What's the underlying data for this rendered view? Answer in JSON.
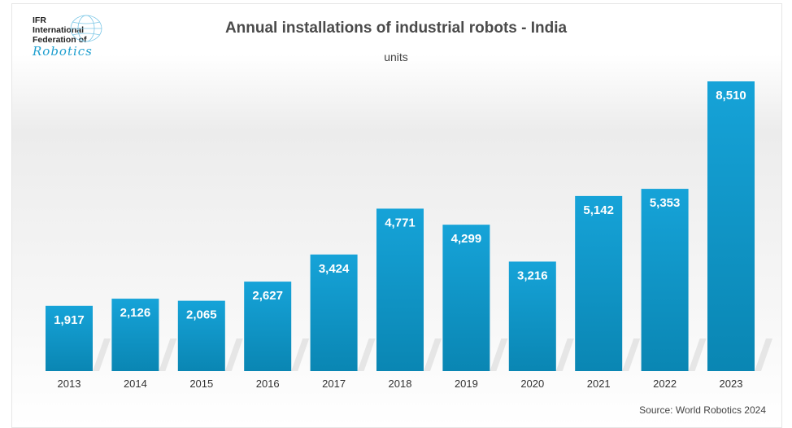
{
  "logo": {
    "line1": "IFR",
    "line2": "International",
    "line3": "Federation of",
    "line4": "Robotics"
  },
  "header": {
    "title": "Annual installations of industrial robots - India",
    "subtitle": "units"
  },
  "footer": {
    "source": "Source: World Robotics 2024"
  },
  "colors": {
    "bar_top": "#16a3d8",
    "bar_bottom": "#0a86b3",
    "text": "#4a4a4a"
  },
  "chart_data": {
    "type": "bar",
    "title": "Annual installations of industrial robots - India",
    "subtitle": "units",
    "categories": [
      "2013",
      "2014",
      "2015",
      "2016",
      "2017",
      "2018",
      "2019",
      "2020",
      "2021",
      "2022",
      "2023"
    ],
    "values": [
      1917,
      2126,
      2065,
      2627,
      3424,
      4771,
      4299,
      3216,
      5142,
      5353,
      8510
    ],
    "value_labels": [
      "1,917",
      "2,126",
      "2,065",
      "2,627",
      "3,424",
      "4,771",
      "4,299",
      "3,216",
      "5,142",
      "5,353",
      "8,510"
    ],
    "xlabel": "",
    "ylabel": "",
    "ylim": [
      0,
      8510
    ],
    "grid": false,
    "legend": "none"
  }
}
